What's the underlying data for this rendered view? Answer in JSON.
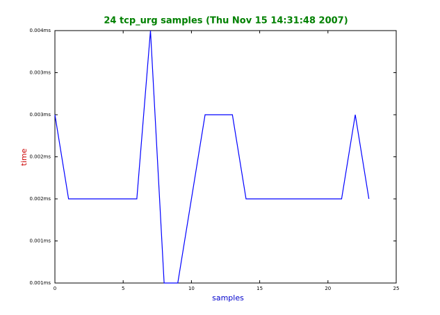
{
  "chart_data": {
    "type": "line",
    "title": "24 tcp_urg samples (Thu Nov 15 14:31:48 2007)",
    "x_label": "samples",
    "y_label": "time",
    "x": [
      0,
      1,
      2,
      3,
      4,
      5,
      6,
      7,
      8,
      9,
      10,
      11,
      12,
      13,
      14,
      15,
      16,
      17,
      18,
      19,
      20,
      21,
      22,
      23
    ],
    "series": [
      {
        "color": "#0000ff",
        "values": [
          0.003,
          0.002,
          0.002,
          0.002,
          0.002,
          0.002,
          0.002,
          0.004,
          0.001,
          0.001,
          0.002,
          0.003,
          0.003,
          0.003,
          0.002,
          0.002,
          0.002,
          0.002,
          0.002,
          0.002,
          0.002,
          0.002,
          0.003,
          0.002
        ]
      }
    ],
    "xlim": [
      0,
      25
    ],
    "xticks": [
      0,
      5,
      10,
      15,
      20,
      25
    ],
    "ylim": [
      0.001,
      0.004
    ],
    "yticks": [
      {
        "value": 0.001,
        "label": "0.001ms"
      },
      {
        "value": 0.0015,
        "label": "0.001ms"
      },
      {
        "value": 0.002,
        "label": "0.002ms"
      },
      {
        "value": 0.0025,
        "label": "0.002ms"
      },
      {
        "value": 0.003,
        "label": "0.003ms"
      },
      {
        "value": 0.0035,
        "label": "0.003ms"
      },
      {
        "value": 0.004,
        "label": "0.004ms"
      }
    ],
    "grid": false
  }
}
